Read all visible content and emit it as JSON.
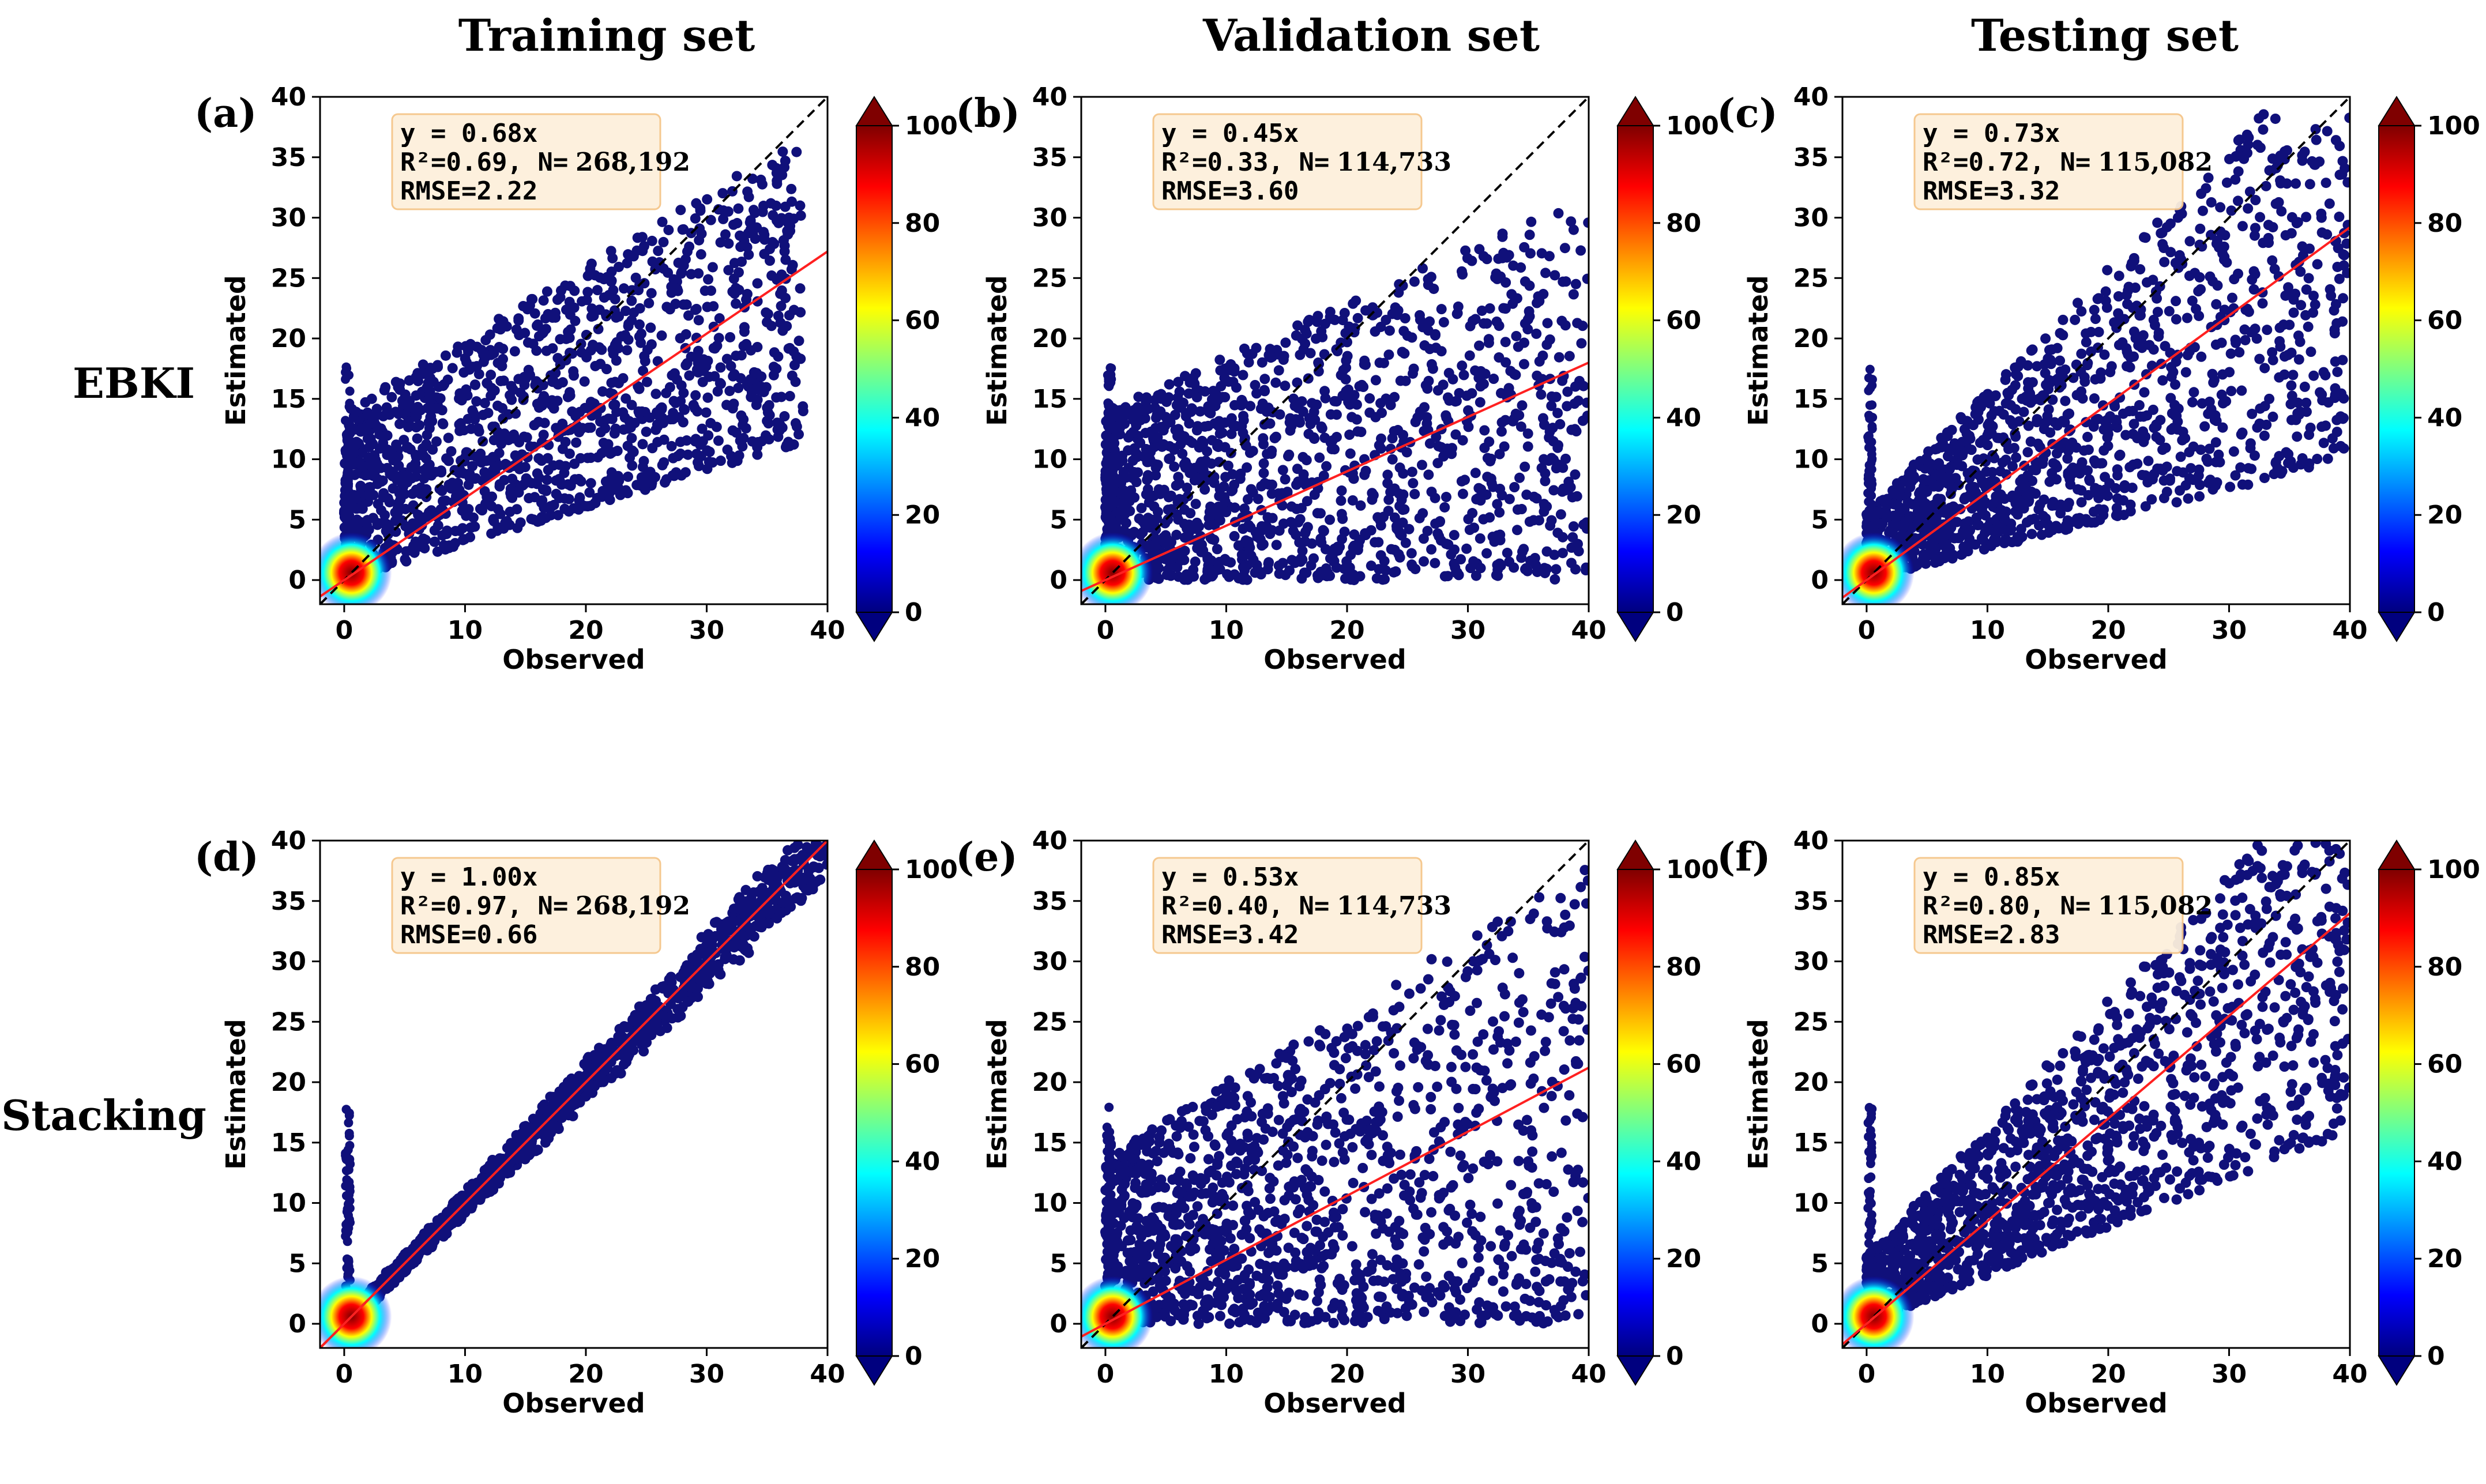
{
  "figure": {
    "column_titles": [
      "Training set",
      "Validation set",
      "Testing set"
    ],
    "row_titles": [
      "EBKI",
      "Stacking"
    ],
    "colors": {
      "fit_line": "#ff2020",
      "identity_line": "#000000",
      "annotation_bg": "#fdf0dc",
      "annotation_border": "#f5c68a",
      "point": "#10107a"
    }
  },
  "chart_data": [
    {
      "type": "scatter",
      "panel": "(a)",
      "row": "EBKI",
      "column": "Training set",
      "xlabel": "Observed",
      "ylabel": "Estimated",
      "xlim": [
        -2,
        40
      ],
      "ylim": [
        -2,
        40
      ],
      "xticks": [
        0,
        10,
        20,
        30,
        40
      ],
      "yticks": [
        0,
        5,
        10,
        15,
        20,
        25,
        30,
        35,
        40
      ],
      "fit": {
        "label": "y = 0.68x",
        "slope": 0.68
      },
      "stats": {
        "r2_label": "R²=0.69, N=",
        "n": "268,192",
        "rmse_label": "RMSE=2.22"
      },
      "cloud": {
        "upper": 0.95,
        "lower": 0.3,
        "xmax": 38
      },
      "colorbar": {
        "min": 0,
        "max": 100,
        "ticks": [
          0,
          20,
          40,
          60,
          80,
          100
        ]
      }
    },
    {
      "type": "scatter",
      "panel": "(b)",
      "row": "EBKI",
      "column": "Validation set",
      "xlabel": "Observed",
      "ylabel": "Estimated",
      "xlim": [
        -2,
        40
      ],
      "ylim": [
        -2,
        40
      ],
      "xticks": [
        0,
        10,
        20,
        30,
        40
      ],
      "yticks": [
        0,
        5,
        10,
        15,
        20,
        25,
        30,
        35,
        40
      ],
      "fit": {
        "label": "y = 0.45x",
        "slope": 0.45
      },
      "stats": {
        "r2_label": "R²=0.33, N=",
        "n": "114,733",
        "rmse_label": "RMSE=3.60"
      },
      "cloud": {
        "upper": 0.8,
        "lower": 0.0,
        "xmax": 40
      },
      "colorbar": {
        "min": 0,
        "max": 100,
        "ticks": [
          0,
          20,
          40,
          60,
          80,
          100
        ]
      }
    },
    {
      "type": "scatter",
      "panel": "(c)",
      "row": "EBKI",
      "column": "Testing set",
      "xlabel": "Observed",
      "ylabel": "Estimated",
      "xlim": [
        -2,
        40
      ],
      "ylim": [
        -2,
        40
      ],
      "xticks": [
        0,
        10,
        20,
        30,
        40
      ],
      "yticks": [
        0,
        5,
        10,
        15,
        20,
        25,
        30,
        35,
        40
      ],
      "fit": {
        "label": "y = 0.73x",
        "slope": 0.73
      },
      "stats": {
        "r2_label": "R²=0.72, N=",
        "n": "115,082",
        "rmse_label": "RMSE=3.32"
      },
      "cloud": {
        "upper": 1.15,
        "lower": 0.25,
        "xmax": 40
      },
      "colorbar": {
        "min": 0,
        "max": 100,
        "ticks": [
          0,
          20,
          40,
          60,
          80,
          100
        ]
      }
    },
    {
      "type": "scatter",
      "panel": "(d)",
      "row": "Stacking",
      "column": "Training set",
      "xlabel": "Observed",
      "ylabel": "Estimated",
      "xlim": [
        -2,
        40
      ],
      "ylim": [
        -2,
        40
      ],
      "xticks": [
        0,
        10,
        20,
        30,
        40
      ],
      "yticks": [
        0,
        5,
        10,
        15,
        20,
        25,
        30,
        35,
        40
      ],
      "fit": {
        "label": "y = 1.00x",
        "slope": 1.0
      },
      "stats": {
        "r2_label": "R²=0.97, N=",
        "n": "268,192",
        "rmse_label": "RMSE=0.66"
      },
      "cloud": {
        "upper": 1.1,
        "lower": 0.88,
        "xmax": 40
      },
      "colorbar": {
        "min": 0,
        "max": 100,
        "ticks": [
          0,
          20,
          40,
          60,
          80,
          100
        ]
      }
    },
    {
      "type": "scatter",
      "panel": "(e)",
      "row": "Stacking",
      "column": "Validation set",
      "xlabel": "Observed",
      "ylabel": "Estimated",
      "xlim": [
        -2,
        40
      ],
      "ylim": [
        -2,
        40
      ],
      "xticks": [
        0,
        10,
        20,
        30,
        40
      ],
      "yticks": [
        0,
        5,
        10,
        15,
        20,
        25,
        30,
        35,
        40
      ],
      "fit": {
        "label": "y = 0.53x",
        "slope": 0.53
      },
      "stats": {
        "r2_label": "R²=0.40, N=",
        "n": "114,733",
        "rmse_label": "RMSE=3.42"
      },
      "cloud": {
        "upper": 0.95,
        "lower": 0.0,
        "xmax": 40
      },
      "colorbar": {
        "min": 0,
        "max": 100,
        "ticks": [
          0,
          20,
          40,
          60,
          80,
          100
        ]
      }
    },
    {
      "type": "scatter",
      "panel": "(f)",
      "row": "Stacking",
      "column": "Testing set",
      "xlabel": "Observed",
      "ylabel": "Estimated",
      "xlim": [
        -2,
        40
      ],
      "ylim": [
        -2,
        40
      ],
      "xticks": [
        0,
        10,
        20,
        30,
        40
      ],
      "yticks": [
        0,
        5,
        10,
        15,
        20,
        25,
        30,
        35,
        40
      ],
      "fit": {
        "label": "y = 0.85x",
        "slope": 0.85
      },
      "stats": {
        "r2_label": "R²=0.80, N=",
        "n": "115,082",
        "rmse_label": "RMSE=2.83"
      },
      "cloud": {
        "upper": 1.2,
        "lower": 0.4,
        "xmax": 40
      },
      "colorbar": {
        "min": 0,
        "max": 100,
        "ticks": [
          0,
          20,
          40,
          60,
          80,
          100
        ]
      }
    }
  ]
}
